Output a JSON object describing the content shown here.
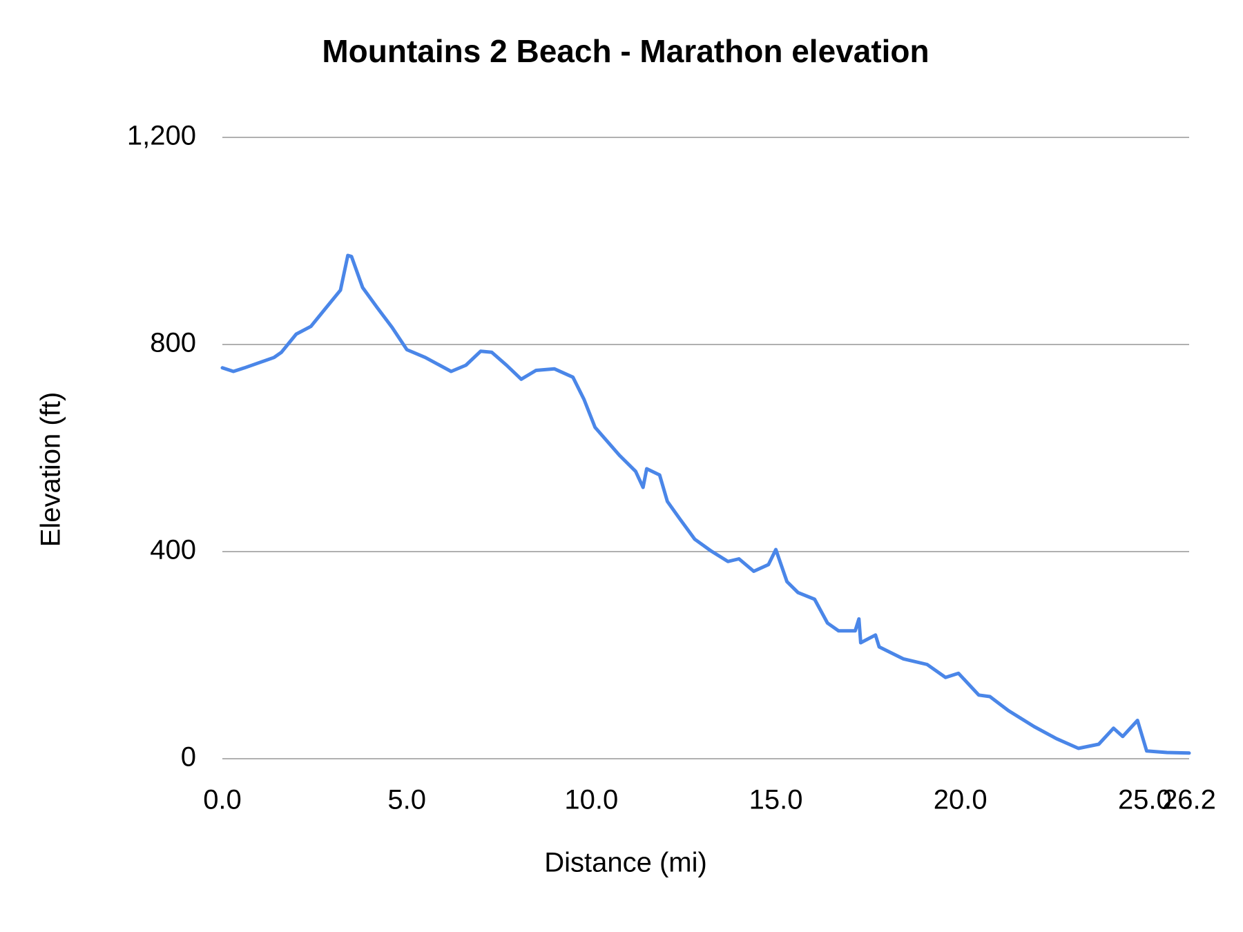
{
  "chart_data": {
    "type": "line",
    "title": "Mountains 2 Beach - Marathon elevation",
    "x_label": "Distance (mi)",
    "y_label": "Elevation (ft)",
    "x": [
      0,
      0.3,
      0.6,
      1.0,
      1.4,
      1.6,
      2.0,
      2.4,
      2.8,
      3.2,
      3.4,
      3.5,
      3.8,
      4.2,
      4.6,
      5.0,
      5.5,
      6.2,
      6.6,
      7.0,
      7.3,
      7.7,
      8.1,
      8.5,
      9.0,
      9.5,
      9.8,
      10.1,
      10.76,
      11.2,
      11.4,
      11.5,
      11.85,
      12.06,
      12.4,
      12.8,
      13.25,
      13.7,
      14.0,
      14.4,
      14.8,
      15.0,
      15.3,
      15.6,
      16.05,
      16.4,
      16.7,
      17.15,
      17.25,
      17.3,
      17.7,
      17.8,
      18.45,
      19.1,
      19.6,
      19.95,
      20.5,
      20.8,
      21.3,
      22.0,
      22.6,
      23.2,
      23.75,
      24.15,
      24.4,
      24.8,
      25.05,
      25.6,
      26.2
    ],
    "values": [
      755,
      748,
      755,
      765,
      775,
      785,
      820,
      835,
      870,
      905,
      972,
      970,
      910,
      871,
      833,
      790,
      775,
      748,
      760,
      787,
      785,
      760,
      733,
      750,
      753,
      737,
      694,
      640,
      586,
      555,
      524,
      560,
      548,
      497,
      463,
      424,
      401,
      381,
      386,
      362,
      375,
      404,
      342,
      321,
      308,
      262,
      247,
      247,
      270,
      224,
      239,
      216,
      193,
      182,
      157,
      165,
      123,
      120,
      93,
      62,
      39,
      20,
      28,
      59,
      43,
      74,
      15,
      12,
      11
    ],
    "color": "#4a86e8",
    "xlim": [
      0,
      26.2
    ],
    "xticks": [
      {
        "value": 0,
        "label": "0.0"
      },
      {
        "value": 5,
        "label": "5.0"
      },
      {
        "value": 10,
        "label": "10.0"
      },
      {
        "value": 15,
        "label": "15.0"
      },
      {
        "value": 20,
        "label": "20.0"
      },
      {
        "value": 25,
        "label": "25.0"
      },
      26.2
    ],
    "ylim": [
      0,
      1200
    ],
    "yticks": [
      0,
      400,
      800,
      {
        "value": 1200,
        "label": "1,200"
      }
    ],
    "grid": true
  }
}
